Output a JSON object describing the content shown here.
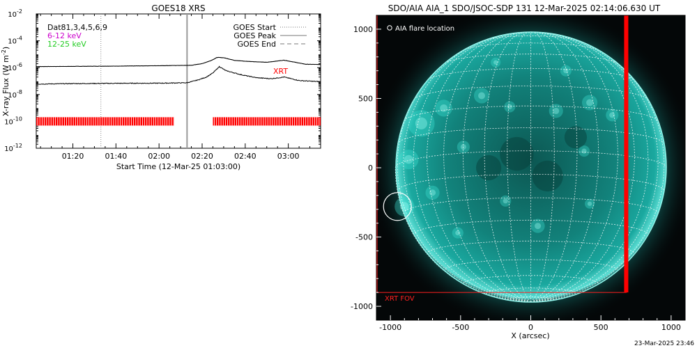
{
  "chart_data": [
    {
      "type": "line",
      "title": "GOES18 XRS",
      "xlabel": "Start Time (12-Mar-25 01:03:00)",
      "ylabel": "X-ray Flux (W m",
      "ylabel_sup": "-2",
      "x_domain": [
        "01:03",
        "03:15"
      ],
      "x_ticks": [
        "01:20",
        "01:40",
        "02:00",
        "02:20",
        "02:40",
        "03:00"
      ],
      "y_scale": "log",
      "ylim": [
        1e-12,
        0.01
      ],
      "y_ticks": [
        {
          "base": "10",
          "exp": "-2"
        },
        {
          "base": "10",
          "exp": "-4"
        },
        {
          "base": "10",
          "exp": "-6"
        },
        {
          "base": "10",
          "exp": "-8"
        },
        {
          "base": "10",
          "exp": "-10"
        },
        {
          "base": "10",
          "exp": "-12"
        }
      ],
      "top_left_labels": [
        {
          "text": "Dat81,3,4,5,6,9",
          "color": "#000000"
        },
        {
          "text": "6-12 keV",
          "color": "#cc00cc"
        },
        {
          "text": "12-25 keV",
          "color": "#22cc22"
        }
      ],
      "legend": {
        "placement": "top-right",
        "entries": [
          {
            "label": "GOES Start",
            "style": "dotted"
          },
          {
            "label": "GOES Peak",
            "style": "solid"
          },
          {
            "label": "GOES End",
            "style": "dashed"
          }
        ]
      },
      "series": [
        {
          "style": "black",
          "x": [
            "01:03",
            "01:40",
            "02:00",
            "02:15",
            "02:20",
            "02:24",
            "02:27",
            "02:30",
            "02:35",
            "02:40",
            "02:50",
            "02:58",
            "03:08",
            "03:15"
          ],
          "values": [
            1.2e-06,
            1.3e-06,
            1.4e-06,
            1.5e-06,
            2e-06,
            3.3e-06,
            5.8e-06,
            5.5e-06,
            3.5e-06,
            3e-06,
            2.5e-06,
            3.6e-06,
            1.8e-06,
            1.7e-06
          ]
        },
        {
          "style": "black",
          "x": [
            "01:03",
            "01:20",
            "01:40",
            "02:00",
            "02:13",
            "02:18",
            "02:22",
            "02:25",
            "02:28",
            "02:31",
            "02:38",
            "02:45",
            "02:52",
            "02:58",
            "03:05",
            "03:15"
          ],
          "values": [
            6e-08,
            6.5e-08,
            6.8e-08,
            7e-08,
            7.5e-08,
            1.2e-07,
            2e-07,
            4e-07,
            1.2e-06,
            6e-07,
            3e-07,
            1.8e-07,
            1.5e-07,
            2e-07,
            1.1e-07,
            9e-08
          ]
        }
      ],
      "markers": {
        "goes_start": "01:33",
        "goes_peak": "02:13"
      },
      "xrt_label": "XRT",
      "xrt_bar_level": 1e-10,
      "xrt_coverage": [
        {
          "start": "01:03",
          "end": "02:07"
        },
        {
          "start": "02:25",
          "end": "03:15"
        }
      ]
    },
    {
      "type": "image",
      "title": "SDO/AIA AIA_1 SDO/JSOC-SDP 131 12-Mar-2025 02:14:06.630 UT",
      "xlabel": "X (arcsec)",
      "ylabel": "",
      "xlim": [
        -1100,
        1100
      ],
      "ylim": [
        -1100,
        1100
      ],
      "x_ticks": [
        "-1000",
        "-500",
        "0",
        "500",
        "1000"
      ],
      "y_ticks": [
        "1000",
        "500",
        "0",
        "-500",
        "-1000"
      ],
      "solar_radius_arcsec": 965,
      "legend_label": "AIA flare location",
      "flare_location": [
        -950,
        -280
      ],
      "fov_label": "XRT FOV",
      "xrt_fov": {
        "x": [
          -1100,
          680
        ],
        "y": [
          -900,
          1100
        ]
      },
      "timestamp": "23-Mar-2025 23:46"
    }
  ],
  "colors": {
    "axis": "#000000",
    "xrt_red": "#ff0000",
    "sun_core": "#17b5ac",
    "sun_edge": "#0a6f6a",
    "background": "#040708"
  }
}
